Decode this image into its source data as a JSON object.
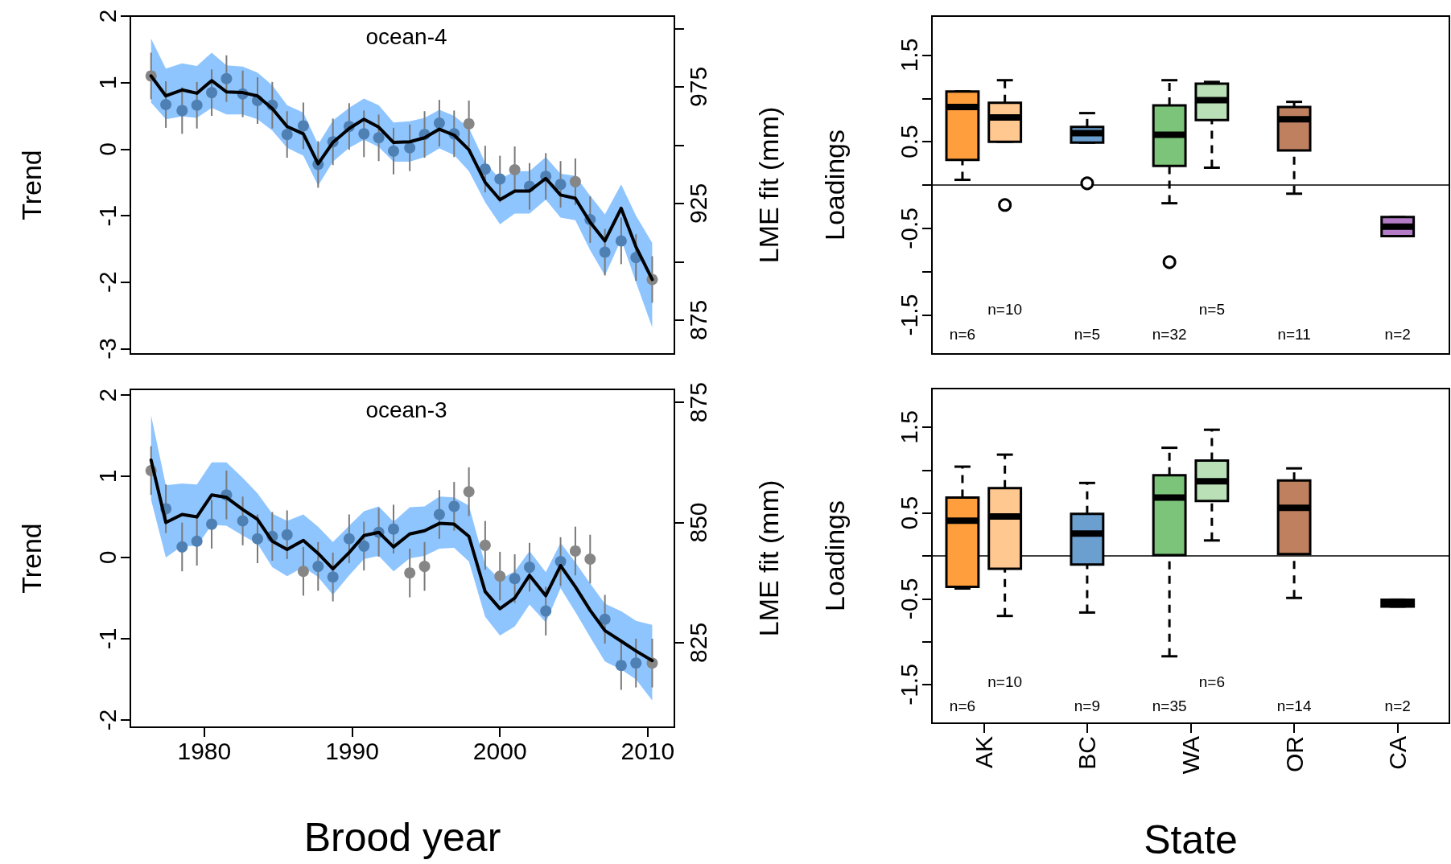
{
  "chart_data": [
    {
      "type": "line",
      "title": "ocean-4",
      "ylabel": "Trend",
      "y2label": "LME fit (mm)",
      "tick_labels": "y",
      "x": [
        1976.4,
        1977.4,
        1978.5,
        1979.5,
        1980.5,
        1981.5,
        1982.6,
        1983.6,
        1984.6,
        1985.6,
        1986.7,
        1987.7,
        1988.7,
        1989.8,
        1990.8,
        1991.8,
        1992.8,
        1993.9,
        1994.9,
        1995.9,
        1996.9,
        1997.9,
        1999.0,
        2000.0,
        2001.0,
        2002.0,
        2003.1,
        2004.1,
        2005.1,
        2006.1,
        2007.1,
        2008.2,
        2009.2,
        2010.3
      ],
      "xlim": [
        1975.0,
        2011.8
      ],
      "xticks": [
        1980,
        1990,
        2000,
        2010
      ],
      "ylim": [
        -3.08,
        2
      ],
      "yticks": [
        -3,
        -2,
        -1,
        0,
        1,
        2
      ],
      "y2lim": [
        860.5,
        1005.3
      ],
      "y2ticks": [
        875,
        {
          "value": 900,
          "label": null
        },
        925,
        {
          "value": 950,
          "label": null
        },
        975,
        {
          "value": 1000,
          "label": null
        }
      ],
      "series": [
        {
          "type": "line",
          "marker": "none",
          "color": "#000000",
          "values": [
            1.1,
            0.8,
            0.89,
            0.84,
            1.03,
            0.86,
            0.85,
            0.8,
            0.61,
            0.34,
            0.23,
            -0.22,
            0.1,
            0.31,
            0.45,
            0.33,
            0.1,
            0.11,
            0.17,
            0.3,
            0.21,
            -0.01,
            -0.5,
            -0.76,
            -0.63,
            -0.63,
            -0.44,
            -0.69,
            -0.74,
            -1.1,
            -1.38,
            -0.89,
            -1.47,
            -1.96
          ],
          "upper": [
            1.66,
            1.21,
            1.29,
            1.25,
            1.45,
            1.26,
            1.24,
            1.15,
            0.96,
            0.66,
            0.55,
            0.07,
            0.43,
            0.62,
            0.76,
            0.66,
            0.4,
            0.42,
            0.47,
            0.59,
            0.5,
            0.32,
            -0.2,
            -0.45,
            -0.33,
            -0.33,
            -0.12,
            -0.37,
            -0.4,
            -0.7,
            -0.98,
            -0.53,
            -1.0,
            -1.41
          ],
          "lower": [
            0.7,
            0.45,
            0.49,
            0.47,
            0.62,
            0.52,
            0.52,
            0.45,
            0.28,
            0.02,
            -0.1,
            -0.55,
            -0.19,
            0.02,
            0.14,
            0.03,
            -0.19,
            -0.19,
            -0.12,
            0.01,
            -0.09,
            -0.33,
            -0.8,
            -1.13,
            -0.97,
            -0.97,
            -0.76,
            -1.03,
            -1.07,
            -1.52,
            -1.9,
            -1.36,
            -2.0,
            -2.68
          ]
        },
        {
          "type": "scatter",
          "marker": "circle",
          "color": "#4f80b4",
          "values": [
            null,
            0.67,
            0.58,
            0.66,
            0.85,
            1.06,
            0.83,
            0.73,
            0.66,
            0.22,
            0.35,
            -0.23,
            0.11,
            0.34,
            0.23,
            0.17,
            -0.03,
            0.02,
            0.22,
            0.39,
            0.23,
            null,
            -0.3,
            -0.45,
            null,
            -0.56,
            -0.41,
            -0.53,
            null,
            -1.06,
            -1.55,
            -1.38,
            -1.63,
            null
          ],
          "errors": [
            null,
            0.35,
            0.35,
            0.35,
            0.35,
            0.35,
            0.35,
            0.35,
            0.35,
            0.35,
            0.35,
            0.35,
            0.35,
            0.35,
            0.35,
            0.35,
            0.35,
            0.35,
            0.35,
            0.35,
            0.35,
            null,
            0.35,
            0.35,
            null,
            0.35,
            0.35,
            0.35,
            null,
            0.35,
            0.35,
            0.35,
            0.35,
            null
          ]
        },
        {
          "type": "scatter",
          "marker": "circle",
          "color": "#868686",
          "values": [
            1.1,
            null,
            null,
            null,
            null,
            null,
            null,
            null,
            null,
            null,
            null,
            null,
            null,
            null,
            null,
            null,
            null,
            null,
            null,
            null,
            null,
            0.38,
            null,
            null,
            -0.31,
            null,
            null,
            null,
            -0.49,
            null,
            null,
            null,
            null,
            -1.96
          ],
          "errors": [
            0.35,
            null,
            null,
            null,
            null,
            null,
            null,
            null,
            null,
            null,
            null,
            null,
            null,
            null,
            null,
            null,
            null,
            null,
            null,
            null,
            null,
            0.35,
            null,
            null,
            0.35,
            null,
            null,
            null,
            0.35,
            null,
            null,
            null,
            null,
            0.35
          ]
        }
      ]
    },
    {
      "type": "line",
      "title": "ocean-3",
      "xlabel": "Brood year",
      "ylabel": "Trend",
      "y2label": "LME fit (mm)",
      "x": [
        1976.4,
        1977.4,
        1978.5,
        1979.5,
        1980.5,
        1981.5,
        1982.6,
        1983.6,
        1984.6,
        1985.6,
        1986.7,
        1987.7,
        1988.7,
        1989.8,
        1990.8,
        1991.8,
        1992.8,
        1993.9,
        1994.9,
        1995.9,
        1996.9,
        1997.9,
        1999.0,
        2000.0,
        2001.0,
        2002.0,
        2003.1,
        2004.1,
        2005.1,
        2006.1,
        2007.1,
        2008.2,
        2009.2,
        2010.3
      ],
      "xlim": [
        1975.0,
        2011.8
      ],
      "xticks": [
        1980,
        1990,
        2000,
        2010
      ],
      "ylim": [
        -2.09,
        2.07
      ],
      "yticks": [
        -2,
        -1,
        0,
        1,
        2
      ],
      "y2lim": [
        807.4,
        877.7
      ],
      "y2ticks": [
        825,
        850,
        875
      ],
      "series": [
        {
          "type": "line",
          "marker": "none",
          "color": "#000000",
          "values": [
            1.2,
            0.43,
            0.53,
            0.5,
            0.77,
            0.74,
            0.59,
            0.47,
            0.2,
            0.1,
            0.21,
            0.05,
            -0.14,
            0.06,
            0.27,
            0.31,
            0.13,
            0.29,
            0.33,
            0.42,
            0.41,
            0.26,
            -0.42,
            -0.63,
            -0.5,
            -0.22,
            -0.47,
            -0.1,
            -0.36,
            -0.65,
            -0.9,
            -1.03,
            -1.15,
            -1.27
          ],
          "upper": [
            1.75,
            0.89,
            0.91,
            0.9,
            1.17,
            1.17,
            0.98,
            0.79,
            0.54,
            0.45,
            0.53,
            0.38,
            0.19,
            0.39,
            0.57,
            0.63,
            0.44,
            0.62,
            0.63,
            0.75,
            0.74,
            0.64,
            -0.09,
            -0.27,
            -0.17,
            0.08,
            -0.18,
            0.18,
            -0.06,
            -0.32,
            -0.57,
            -0.66,
            -0.78,
            -0.83
          ],
          "lower": [
            0.71,
            0.0,
            0.14,
            0.14,
            0.4,
            0.39,
            0.27,
            0.17,
            -0.12,
            -0.23,
            -0.12,
            -0.24,
            -0.46,
            -0.22,
            -0.02,
            0.02,
            -0.17,
            -0.01,
            0.02,
            0.11,
            0.12,
            -0.05,
            -0.73,
            -0.96,
            -0.85,
            -0.58,
            -0.8,
            -0.38,
            -0.67,
            -0.98,
            -1.28,
            -1.38,
            -1.5,
            -1.76
          ]
        },
        {
          "type": "scatter",
          "marker": "circle",
          "color": "#4f80b4",
          "values": [
            null,
            0.6,
            0.13,
            0.2,
            0.41,
            0.77,
            0.45,
            0.23,
            0.26,
            0.28,
            null,
            -0.11,
            -0.24,
            0.23,
            0.14,
            0.31,
            0.35,
            null,
            null,
            0.53,
            0.63,
            null,
            null,
            null,
            -0.26,
            -0.12,
            -0.66,
            -0.05,
            null,
            null,
            -0.76,
            -1.33,
            -1.3,
            null
          ],
          "errors": [
            null,
            0.3,
            0.3,
            0.3,
            0.3,
            0.3,
            0.3,
            0.3,
            0.3,
            0.3,
            null,
            0.3,
            0.3,
            0.3,
            0.3,
            0.3,
            0.3,
            null,
            null,
            0.3,
            0.3,
            null,
            null,
            null,
            0.3,
            0.3,
            0.3,
            0.3,
            null,
            null,
            0.3,
            0.3,
            0.3,
            null
          ]
        },
        {
          "type": "scatter",
          "marker": "circle",
          "color": "#868686",
          "values": [
            1.07,
            null,
            null,
            null,
            null,
            null,
            null,
            null,
            null,
            null,
            -0.17,
            null,
            null,
            null,
            null,
            null,
            null,
            -0.19,
            -0.11,
            null,
            null,
            0.81,
            0.15,
            -0.23,
            null,
            null,
            null,
            null,
            0.08,
            -0.02,
            null,
            null,
            null,
            -1.3
          ],
          "errors": [
            0.3,
            null,
            null,
            null,
            null,
            null,
            null,
            null,
            null,
            null,
            0.3,
            null,
            null,
            null,
            null,
            null,
            null,
            0.3,
            0.3,
            null,
            null,
            0.3,
            0.3,
            0.3,
            null,
            null,
            null,
            null,
            0.3,
            0.3,
            null,
            null,
            null,
            0.3
          ]
        }
      ]
    },
    {
      "type": "box",
      "ylabel": "Loadings",
      "tick_labels": "y",
      "categories": [
        null,
        null,
        null,
        null,
        null
      ],
      "ylim": [
        -1.95,
        1.95
      ],
      "yticks": [
        -1.5,
        {
          "value": -1,
          "label": null
        },
        -0.5,
        {
          "value": 0,
          "label": null
        },
        0.5,
        {
          "value": 1,
          "label": null
        },
        1.5
      ],
      "ref_lines": [
        {
          "axis": "y",
          "value": 0
        }
      ],
      "series": [
        {
          "colors": [
            "#ff9e3d",
            "#6a9fcf",
            "#7cc47a",
            "#bf8060",
            "#b47cc6"
          ],
          "boxes": [
            {
              "low": 0.06,
              "q1": 0.29,
              "median": 0.9,
              "q3": 1.08,
              "high": 1.08
            },
            {
              "low": 0.49,
              "q1": 0.49,
              "median": 0.6,
              "q3": 0.67,
              "high": 0.83,
              "outliers": [
                0.02
              ]
            },
            {
              "low": -0.21,
              "q1": 0.22,
              "median": 0.58,
              "q3": 0.92,
              "high": 1.21,
              "outliers": [
                -0.89
              ]
            },
            {
              "low": -0.1,
              "q1": 0.4,
              "median": 0.76,
              "q3": 0.9,
              "high": 0.96
            },
            {
              "low": -0.59,
              "q1": -0.59,
              "median": -0.48,
              "q3": -0.37,
              "high": -0.37
            }
          ]
        },
        {
          "colors": [
            "#ffc891",
            null,
            "#b9e0b6",
            null,
            null
          ],
          "boxes": [
            {
              "low": 0.5,
              "q1": 0.5,
              "median": 0.78,
              "q3": 0.95,
              "high": 1.21,
              "outliers": [
                -0.23
              ]
            },
            null,
            {
              "low": 0.2,
              "q1": 0.75,
              "median": 0.98,
              "q3": 1.17,
              "high": 1.19
            },
            null,
            null
          ]
        }
      ],
      "annotations": [
        "n=6",
        "n=10",
        "n=5",
        "n=32",
        "n=5",
        "n=11",
        "n=2"
      ]
    },
    {
      "type": "box",
      "xlabel": "State",
      "ylabel": "Loadings",
      "categories": [
        "AK",
        "BC",
        "WA",
        "OR",
        "CA"
      ],
      "ylim": [
        -1.95,
        1.95
      ],
      "yticks": [
        -1.5,
        {
          "value": -1,
          "label": null
        },
        -0.5,
        {
          "value": 0,
          "label": null
        },
        0.5,
        {
          "value": 1,
          "label": null
        },
        1.5
      ],
      "ref_lines": [
        {
          "axis": "y",
          "value": 0
        }
      ],
      "series": [
        {
          "colors": [
            "#ff9e3d",
            "#6a9fcf",
            "#7cc47a",
            "#bf8060",
            "#b47cc6"
          ],
          "boxes": [
            {
              "low": -0.38,
              "q1": -0.36,
              "median": 0.41,
              "q3": 0.68,
              "high": 1.04
            },
            {
              "low": -0.66,
              "q1": -0.1,
              "median": 0.26,
              "q3": 0.49,
              "high": 0.85
            },
            {
              "low": -1.17,
              "q1": 0.01,
              "median": 0.68,
              "q3": 0.94,
              "high": 1.26
            },
            {
              "low": -0.49,
              "q1": 0.02,
              "median": 0.56,
              "q3": 0.88,
              "high": 1.02
            },
            {
              "low": -0.59,
              "q1": -0.59,
              "median": -0.55,
              "q3": -0.51,
              "high": -0.51
            }
          ]
        },
        {
          "colors": [
            "#ffc891",
            null,
            "#b9e0b6",
            null,
            null
          ],
          "boxes": [
            {
              "low": -0.7,
              "q1": -0.15,
              "median": 0.46,
              "q3": 0.79,
              "high": 1.18
            },
            null,
            {
              "low": 0.18,
              "q1": 0.64,
              "median": 0.87,
              "q3": 1.11,
              "high": 1.47
            },
            null,
            null
          ]
        }
      ],
      "annotations": [
        "n=6",
        "n=10",
        "n=9",
        "n=35",
        "n=6",
        "n=14",
        "n=2"
      ]
    }
  ]
}
